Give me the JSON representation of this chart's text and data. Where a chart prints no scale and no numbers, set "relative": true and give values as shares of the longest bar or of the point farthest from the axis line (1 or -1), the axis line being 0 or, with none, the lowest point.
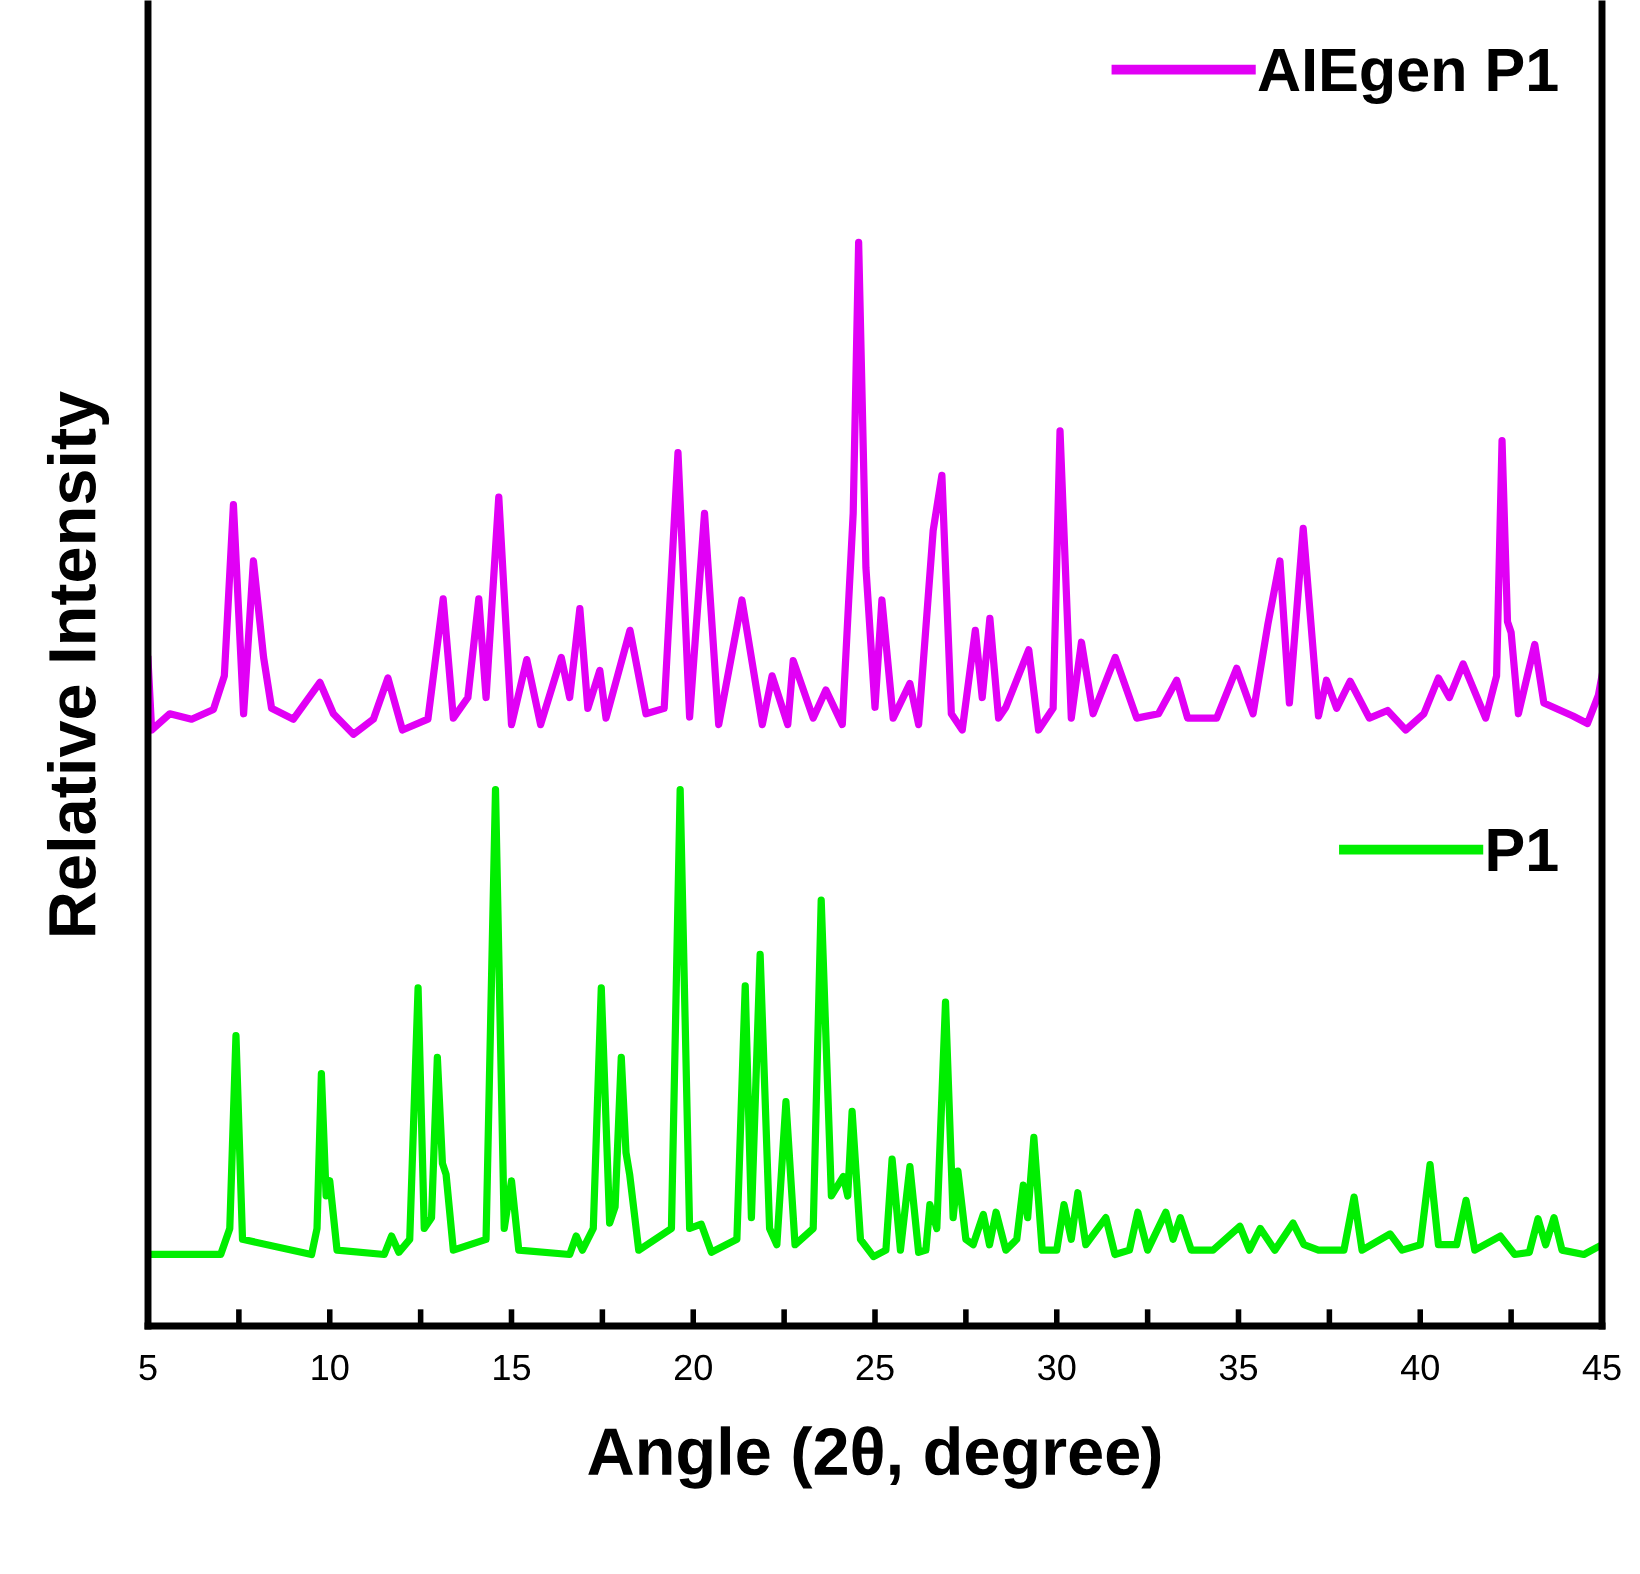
{
  "chart_data": {
    "type": "line",
    "xlabel": "Angle (2θ, degree)",
    "ylabel": "Relative Intensity",
    "relative": true,
    "legend": "top right",
    "grid": false,
    "marker": "none",
    "line_style": "solid",
    "tick_labels": "x",
    "xlim": [
      5,
      45
    ],
    "xticks": [
      5,
      {
        "value": 7.5,
        "label": null
      },
      10,
      {
        "value": 12.5,
        "label": null
      },
      15,
      {
        "value": 17.5,
        "label": null
      },
      20,
      {
        "value": 22.5,
        "label": null
      },
      25,
      {
        "value": 27.5,
        "label": null
      },
      30,
      {
        "value": 32.5,
        "label": null
      },
      35,
      {
        "value": 37.5,
        "label": null
      },
      40,
      {
        "value": 42.5,
        "label": null
      },
      45
    ],
    "series": [
      {
        "name": "AIEgen P1",
        "color": "#e100f5",
        "x": [
          5.0,
          5.1,
          5.6,
          6.2,
          6.8,
          7.1,
          7.35,
          7.63,
          7.9,
          8.18,
          8.4,
          9.0,
          9.73,
          10.1,
          10.65,
          11.2,
          11.6,
          12.0,
          12.7,
          13.12,
          13.4,
          13.8,
          14.1,
          14.3,
          14.65,
          15.0,
          15.42,
          15.8,
          16.37,
          16.6,
          16.88,
          17.1,
          17.43,
          17.6,
          18.26,
          18.7,
          19.2,
          19.58,
          19.9,
          20.31,
          20.7,
          21.34,
          21.9,
          22.17,
          22.6,
          22.75,
          23.3,
          23.65,
          24.1,
          24.4,
          24.55,
          24.75,
          25.0,
          25.19,
          25.5,
          25.96,
          26.2,
          26.6,
          26.84,
          27.1,
          27.4,
          27.76,
          27.95,
          28.16,
          28.4,
          28.6,
          29.23,
          29.5,
          29.9,
          30.09,
          30.4,
          30.68,
          31.0,
          31.61,
          32.2,
          32.8,
          33.3,
          33.6,
          34.4,
          34.95,
          35.4,
          35.81,
          36.14,
          36.4,
          36.78,
          37.2,
          37.42,
          37.7,
          38.07,
          38.6,
          39.1,
          39.6,
          40.1,
          40.5,
          40.8,
          41.18,
          41.8,
          42.1,
          42.25,
          42.4,
          42.5,
          42.7,
          43.15,
          43.4,
          44.2,
          44.6,
          44.9,
          45.0
        ],
        "values": [
          0.615,
          0.55,
          0.565,
          0.56,
          0.569,
          0.6,
          0.758,
          0.565,
          0.706,
          0.617,
          0.57,
          0.56,
          0.594,
          0.565,
          0.546,
          0.56,
          0.598,
          0.55,
          0.56,
          0.671,
          0.561,
          0.58,
          0.671,
          0.58,
          0.765,
          0.555,
          0.615,
          0.555,
          0.617,
          0.58,
          0.662,
          0.57,
          0.605,
          0.561,
          0.642,
          0.565,
          0.57,
          0.806,
          0.562,
          0.75,
          0.555,
          0.67,
          0.555,
          0.6,
          0.555,
          0.614,
          0.561,
          0.587,
          0.555,
          0.75,
          1.0,
          0.7,
          0.571,
          0.67,
          0.561,
          0.593,
          0.555,
          0.734,
          0.785,
          0.565,
          0.55,
          0.642,
          0.58,
          0.653,
          0.561,
          0.571,
          0.624,
          0.55,
          0.57,
          0.826,
          0.561,
          0.631,
          0.565,
          0.617,
          0.561,
          0.565,
          0.596,
          0.561,
          0.561,
          0.607,
          0.565,
          0.648,
          0.706,
          0.575,
          0.736,
          0.563,
          0.596,
          0.57,
          0.595,
          0.561,
          0.568,
          0.55,
          0.565,
          0.598,
          0.58,
          0.611,
          0.561,
          0.6,
          0.817,
          0.65,
          0.64,
          0.565,
          0.629,
          0.575,
          0.563,
          0.556,
          0.582,
          0.6
        ]
      },
      {
        "name": "P1",
        "color": "#00ee00",
        "x": [
          5,
          7.0,
          7.25,
          7.42,
          7.6,
          9.5,
          9.65,
          9.77,
          9.9,
          10.0,
          10.2,
          11.5,
          11.7,
          11.9,
          12.2,
          12.43,
          12.6,
          12.8,
          12.96,
          13.1,
          13.2,
          13.4,
          14.3,
          14.56,
          14.8,
          15.0,
          15.2,
          16.6,
          16.78,
          16.95,
          17.25,
          17.47,
          17.7,
          17.85,
          18.02,
          18.15,
          18.25,
          18.5,
          19.4,
          19.64,
          19.9,
          20.22,
          20.5,
          21.2,
          21.43,
          21.6,
          21.84,
          22.1,
          22.3,
          22.55,
          22.8,
          23.3,
          23.52,
          23.8,
          24.13,
          24.25,
          24.37,
          24.6,
          24.96,
          25.3,
          25.47,
          25.7,
          25.96,
          26.2,
          26.4,
          26.51,
          26.7,
          26.94,
          27.15,
          27.28,
          27.5,
          27.7,
          27.98,
          28.15,
          28.33,
          28.6,
          28.9,
          29.08,
          29.2,
          29.37,
          29.6,
          30.0,
          30.2,
          30.4,
          30.58,
          30.8,
          31.35,
          31.6,
          32.0,
          32.23,
          32.5,
          33.0,
          33.2,
          33.4,
          33.7,
          34.3,
          35.04,
          35.3,
          35.6,
          36.0,
          36.5,
          36.8,
          37.2,
          37.9,
          38.18,
          38.4,
          39.17,
          39.5,
          40.0,
          40.27,
          40.5,
          41.0,
          41.26,
          41.5,
          42.2,
          42.6,
          43.0,
          43.24,
          43.45,
          43.68,
          43.9,
          44.5,
          45
        ],
        "values": [
          0.066,
          0.066,
          0.09,
          0.268,
          0.08,
          0.066,
          0.09,
          0.233,
          0.12,
          0.134,
          0.07,
          0.066,
          0.083,
          0.068,
          0.08,
          0.312,
          0.09,
          0.1,
          0.248,
          0.15,
          0.14,
          0.07,
          0.08,
          0.495,
          0.09,
          0.134,
          0.07,
          0.066,
          0.083,
          0.07,
          0.09,
          0.312,
          0.095,
          0.11,
          0.248,
          0.16,
          0.14,
          0.07,
          0.09,
          0.495,
          0.09,
          0.094,
          0.068,
          0.08,
          0.314,
          0.1,
          0.343,
          0.09,
          0.075,
          0.207,
          0.075,
          0.09,
          0.393,
          0.12,
          0.138,
          0.12,
          0.198,
          0.08,
          0.064,
          0.07,
          0.154,
          0.07,
          0.147,
          0.068,
          0.07,
          0.112,
          0.09,
          0.299,
          0.1,
          0.143,
          0.08,
          0.075,
          0.103,
          0.075,
          0.105,
          0.07,
          0.08,
          0.13,
          0.1,
          0.174,
          0.07,
          0.07,
          0.112,
          0.08,
          0.123,
          0.075,
          0.1,
          0.066,
          0.07,
          0.105,
          0.07,
          0.105,
          0.08,
          0.1,
          0.07,
          0.07,
          0.092,
          0.07,
          0.09,
          0.07,
          0.095,
          0.075,
          0.07,
          0.07,
          0.119,
          0.07,
          0.085,
          0.07,
          0.075,
          0.149,
          0.075,
          0.075,
          0.116,
          0.07,
          0.083,
          0.066,
          0.068,
          0.099,
          0.075,
          0.1,
          0.07,
          0.066,
          0.075
        ]
      }
    ]
  }
}
